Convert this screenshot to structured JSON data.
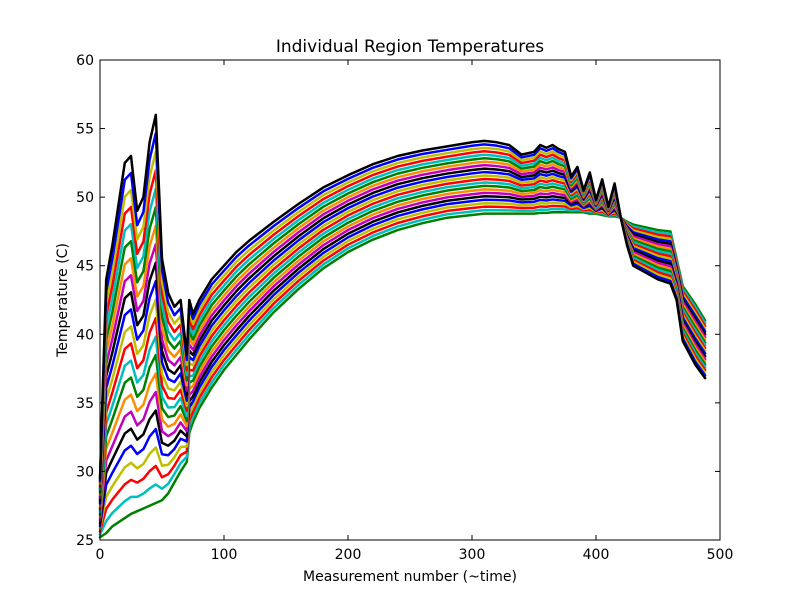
{
  "chart_data": {
    "type": "line",
    "title": "Individual Region Temperatures",
    "xlabel": "Measurement number (~time)",
    "ylabel": "Temperature (C)",
    "xlim": [
      0,
      500
    ],
    "ylim": [
      25,
      60
    ],
    "xticks": [
      0,
      100,
      200,
      300,
      400,
      500
    ],
    "yticks": [
      25,
      30,
      35,
      40,
      45,
      50,
      55,
      60
    ],
    "grid": false,
    "legend": "none",
    "colors": [
      "#008000",
      "#00bfbf",
      "#ff0000",
      "#bfbf00",
      "#0000ff",
      "#000000",
      "#bf00bf",
      "#ff8c00"
    ],
    "series_count": 22,
    "series_keypoints": {
      "x": [
        0,
        5,
        10,
        15,
        20,
        25,
        30,
        35,
        40,
        45,
        50,
        55,
        60,
        65,
        70,
        72,
        75,
        80,
        90,
        100,
        110,
        120,
        140,
        160,
        180,
        200,
        220,
        240,
        260,
        280,
        300,
        310,
        320,
        330,
        340,
        350,
        355,
        360,
        365,
        370,
        375,
        380,
        385,
        390,
        395,
        400,
        405,
        410,
        415,
        420,
        425,
        430,
        440,
        450,
        460,
        465,
        470,
        480,
        488
      ],
      "bottom": [
        25.2,
        25.5,
        26.0,
        26.3,
        26.6,
        26.9,
        27.1,
        27.3,
        27.5,
        27.7,
        27.9,
        28.4,
        29.2,
        30.0,
        30.7,
        32.8,
        33.6,
        34.6,
        36.1,
        37.4,
        38.5,
        39.6,
        41.6,
        43.3,
        44.8,
        46.0,
        46.9,
        47.6,
        48.1,
        48.5,
        48.7,
        48.8,
        48.8,
        48.8,
        48.8,
        48.8,
        48.85,
        48.85,
        48.9,
        48.9,
        48.9,
        48.9,
        48.9,
        48.9,
        48.8,
        48.8,
        48.7,
        48.6,
        48.6,
        48.5,
        48.2,
        48.0,
        47.8,
        47.6,
        47.5,
        45.5,
        43.5,
        42.2,
        41.0
      ],
      "top": [
        29.5,
        44.0,
        46.5,
        49.5,
        52.5,
        53.0,
        49.0,
        50.0,
        54.0,
        56.0,
        45.5,
        43.0,
        42.0,
        42.5,
        38.5,
        42.5,
        41.5,
        42.5,
        44.0,
        45.0,
        46.0,
        46.8,
        48.2,
        49.5,
        50.7,
        51.6,
        52.4,
        53.0,
        53.4,
        53.7,
        54.0,
        54.1,
        54.0,
        53.8,
        53.1,
        53.3,
        53.8,
        53.6,
        53.8,
        53.5,
        53.3,
        51.5,
        52.2,
        50.5,
        51.8,
        49.8,
        51.3,
        49.3,
        51.0,
        48.5,
        46.5,
        45.0,
        44.5,
        44.0,
        43.7,
        42.5,
        39.5,
        37.8,
        36.8
      ]
    }
  }
}
